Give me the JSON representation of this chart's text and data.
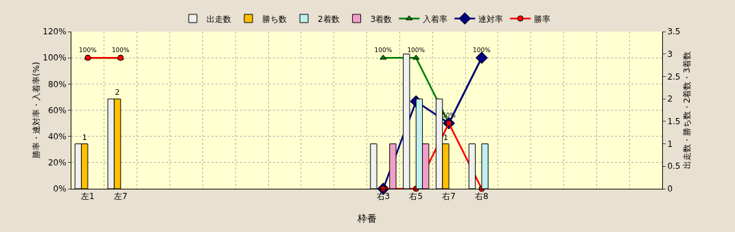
{
  "chart_data": {
    "type": "bar",
    "xlabel": "枠番",
    "ylabel": "勝率・連対率・入着率(%)",
    "y2label": "出走数・勝ち数・2着数・3着数",
    "categories": [
      "左1",
      "左7",
      null,
      null,
      null,
      null,
      null,
      null,
      null,
      "右3",
      "右5",
      "右7",
      "右8",
      null,
      null,
      null,
      null,
      null
    ],
    "series": [
      {
        "name": "出走数",
        "type": "bar",
        "axis": "y2",
        "color": "#f0f0f0",
        "values": [
          1,
          2,
          null,
          null,
          null,
          null,
          null,
          null,
          null,
          1,
          3,
          2,
          1,
          null,
          null,
          null,
          null,
          null
        ]
      },
      {
        "name": "勝ち数",
        "type": "bar",
        "axis": "y2",
        "color": "#ffc000",
        "values": [
          1,
          2,
          null,
          null,
          null,
          null,
          null,
          null,
          null,
          null,
          null,
          1,
          null,
          null,
          null,
          null,
          null,
          null
        ],
        "value_labels": [
          "1",
          "2",
          null,
          null,
          null,
          null,
          null,
          null,
          null,
          null,
          null,
          "1",
          null,
          null,
          null,
          null,
          null,
          null
        ]
      },
      {
        "name": "2着数",
        "type": "bar",
        "axis": "y2",
        "color": "#c0f0f0",
        "values": [
          null,
          null,
          null,
          null,
          null,
          null,
          null,
          null,
          null,
          null,
          2,
          null,
          1,
          null,
          null,
          null,
          null,
          null
        ]
      },
      {
        "name": "3着数",
        "type": "bar",
        "axis": "y2",
        "color": "#f0a0c8",
        "values": [
          null,
          null,
          null,
          null,
          null,
          null,
          null,
          null,
          null,
          1,
          1,
          null,
          null,
          null,
          null,
          null,
          null,
          null
        ]
      },
      {
        "name": "入着率",
        "type": "line",
        "marker": "triangle",
        "color": "#008000",
        "values": [
          100,
          100,
          null,
          null,
          null,
          null,
          null,
          null,
          null,
          100,
          100,
          50,
          100,
          null,
          null,
          null,
          null,
          null
        ],
        "value_labels": [
          "100%",
          "100%",
          null,
          null,
          null,
          null,
          null,
          null,
          null,
          "100%",
          "100%",
          "50%",
          "100%",
          null,
          null,
          null,
          null,
          null
        ]
      },
      {
        "name": "連対率",
        "type": "line",
        "marker": "diamond",
        "color": "#000080",
        "values": [
          null,
          null,
          null,
          null,
          null,
          null,
          null,
          null,
          null,
          0,
          66.7,
          50,
          100,
          null,
          null,
          null,
          null,
          null
        ]
      },
      {
        "name": "勝率",
        "type": "line",
        "marker": "circle",
        "color": "#ff0000",
        "values": [
          100,
          100,
          null,
          null,
          null,
          null,
          null,
          null,
          null,
          0,
          0,
          50,
          0,
          null,
          null,
          null,
          null,
          null
        ]
      }
    ],
    "ylim": [
      0,
      120
    ],
    "yticks": [
      {
        "value": 0,
        "label": "0%"
      },
      {
        "value": 20,
        "label": "20%"
      },
      {
        "value": 40,
        "label": "40%"
      },
      {
        "value": 60,
        "label": "60%"
      },
      {
        "value": 80,
        "label": "80%"
      },
      {
        "value": 100,
        "label": "100%"
      },
      {
        "value": 120,
        "label": "120%"
      }
    ],
    "y2lim": [
      0,
      3.5
    ],
    "y2ticks": [
      0,
      0.5,
      1,
      1.5,
      2,
      2.5,
      3,
      3.5
    ],
    "grid": true,
    "legend": "top",
    "line_style": "solid"
  }
}
